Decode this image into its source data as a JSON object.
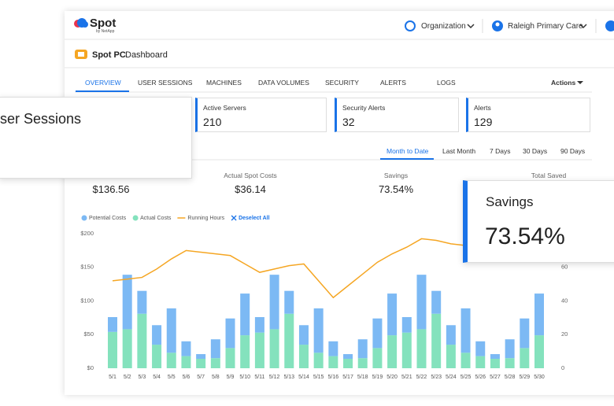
{
  "header": {
    "logo": "Spot",
    "logo_sub": "by NetApp",
    "organization": "Organization",
    "account": "Raleigh Primary Care"
  },
  "page_title": {
    "product": "Spot PC",
    "title": "Dashboard"
  },
  "tabs": {
    "items": [
      "OVERVIEW",
      "USER SESSIONS",
      "MACHINES",
      "DATA VOLUMES",
      "SECURITY",
      "ALERTS",
      "LOGS"
    ],
    "active": 0,
    "actions": "Actions"
  },
  "cards": [
    {
      "label": "Active Servers",
      "value": "210"
    },
    {
      "label": "Security Alerts",
      "value": "32"
    },
    {
      "label": "Alerts",
      "value": "129"
    }
  ],
  "time_filters": {
    "items": [
      "Month to Date",
      "Last Month",
      "7 Days",
      "30 Days",
      "90 Days"
    ],
    "active": 0
  },
  "stats": [
    {
      "value": "$136.56"
    },
    {
      "label": "Actual Spot Costs",
      "value": "$36.14"
    },
    {
      "label": "Savings",
      "value": "73.54%"
    },
    {
      "label": "Total Saved"
    }
  ],
  "callouts": {
    "left": {
      "label": "ser Sessions"
    },
    "right": {
      "label": "Savings",
      "value": "73.54%"
    }
  },
  "chart_data": {
    "type": "bar",
    "stacked": true,
    "legend_action": "Deselect All",
    "categories": [
      "5/1",
      "5/2",
      "5/3",
      "5/4",
      "5/5",
      "5/6",
      "5/7",
      "5/8",
      "5/9",
      "5/10",
      "5/11",
      "5/12",
      "5/13",
      "5/14",
      "5/15",
      "5/16",
      "5/17",
      "5/18",
      "5/19",
      "5/20",
      "5/21",
      "5/22",
      "5/23",
      "5/24",
      "5/25",
      "5/26",
      "5/27",
      "5/28",
      "5/29",
      "5/30"
    ],
    "series": [
      {
        "name": "Potential Costs",
        "color": "#7cb9f4",
        "values": [
          22,
          81,
          34,
          29,
          66,
          22,
          7,
          28,
          44,
          62,
          23,
          81,
          34,
          29,
          66,
          22,
          7,
          28,
          44,
          62,
          23,
          81,
          34,
          29,
          66,
          22,
          7,
          28,
          44,
          62
        ]
      },
      {
        "name": "Actual Costs",
        "color": "#84e2bd",
        "values": [
          54,
          58,
          81,
          35,
          23,
          18,
          14,
          15,
          30,
          49,
          53,
          58,
          81,
          35,
          23,
          18,
          14,
          15,
          30,
          49,
          53,
          58,
          81,
          35,
          23,
          18,
          14,
          15,
          30,
          49
        ]
      },
      {
        "name": "Running Hours",
        "color": "#f5a623",
        "type": "line",
        "axis": "y2",
        "values": [
          52,
          53,
          54,
          59,
          65,
          70,
          69,
          68,
          67,
          62,
          57,
          59,
          61,
          62,
          52,
          42,
          49,
          56,
          63,
          68,
          72,
          77,
          76,
          74,
          73,
          null,
          null,
          null,
          null,
          null
        ]
      }
    ],
    "ylim": [
      0,
      200
    ],
    "yticks": [
      {
        "value": 0,
        "label": "$0"
      },
      {
        "value": 50,
        "label": "$50"
      },
      {
        "value": 100,
        "label": "$100"
      },
      {
        "value": 150,
        "label": "$150"
      },
      {
        "value": 200,
        "label": "$200"
      }
    ],
    "y2lim": [
      0,
      80
    ],
    "y2ticks": [
      0,
      20,
      40,
      60
    ]
  }
}
